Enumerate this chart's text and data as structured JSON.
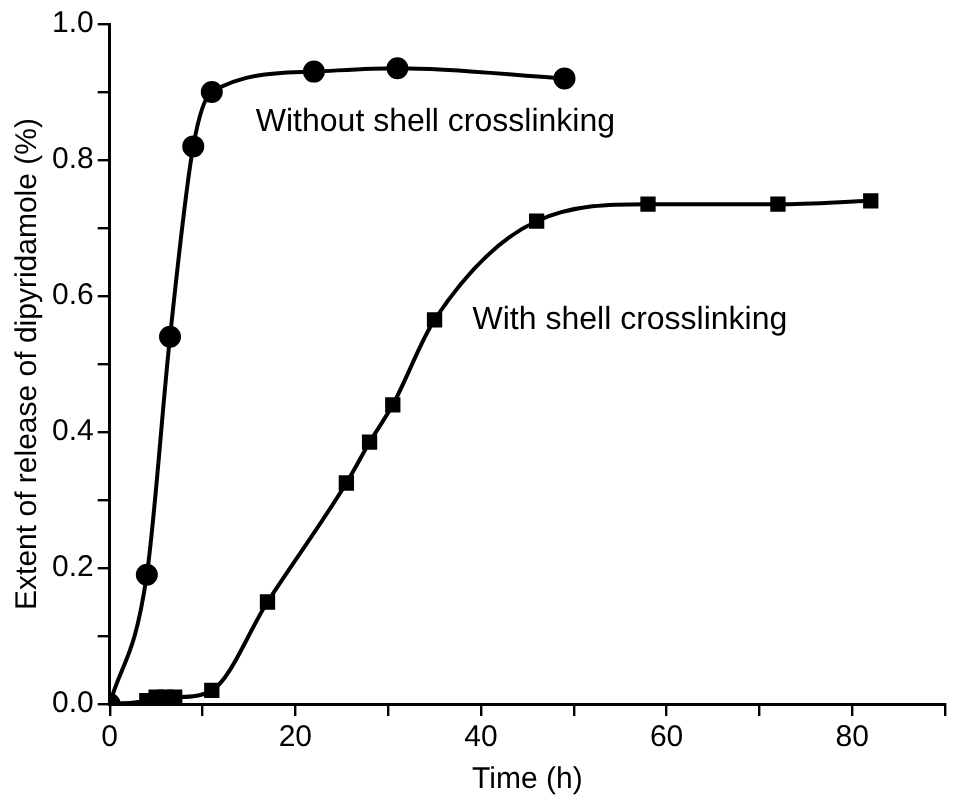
{
  "chart_data": {
    "type": "line",
    "xlabel": "Time (h)",
    "ylabel": "Extent of release of dipyridamole (%)",
    "grid": false,
    "legend": false,
    "xlim": [
      0,
      90
    ],
    "ylim": [
      0,
      1
    ],
    "xticks": [
      0,
      {
        "value": 10,
        "label": null
      },
      20,
      {
        "value": 30,
        "label": null
      },
      40,
      {
        "value": 50,
        "label": null
      },
      60,
      {
        "value": 70,
        "label": null
      },
      80,
      {
        "value": 90,
        "label": null
      }
    ],
    "yticks": [
      {
        "value": 0,
        "label": "0.0"
      },
      {
        "value": 0.1,
        "label": null
      },
      {
        "value": 0.2,
        "label": "0.2"
      },
      {
        "value": 0.3,
        "label": null
      },
      {
        "value": 0.4,
        "label": "0.4"
      },
      {
        "value": 0.5,
        "label": null
      },
      {
        "value": 0.6,
        "label": "0.6"
      },
      {
        "value": 0.7,
        "label": null
      },
      {
        "value": 0.8,
        "label": "0.8"
      },
      {
        "value": 0.9,
        "label": null
      },
      {
        "value": 1,
        "label": "1.0"
      }
    ],
    "series": [
      {
        "name": "Without shell crosslinking",
        "color": "#000000",
        "marker": "circle",
        "x": [
          0,
          4,
          6.5,
          9,
          11,
          22,
          31,
          49
        ],
        "values": [
          0,
          0.19,
          0.54,
          0.82,
          0.9,
          0.93,
          0.935,
          0.92
        ]
      },
      {
        "name": "With shell crosslinking",
        "color": "#000000",
        "marker": "square",
        "x": [
          0,
          4,
          5,
          6,
          7,
          11,
          17,
          25.5,
          28,
          30.5,
          35,
          46,
          58,
          72,
          82
        ],
        "values": [
          0,
          0.005,
          0.01,
          0.01,
          0.01,
          0.02,
          0.15,
          0.325,
          0.385,
          0.44,
          0.565,
          0.71,
          0.735,
          0.735,
          0.74
        ]
      }
    ]
  }
}
